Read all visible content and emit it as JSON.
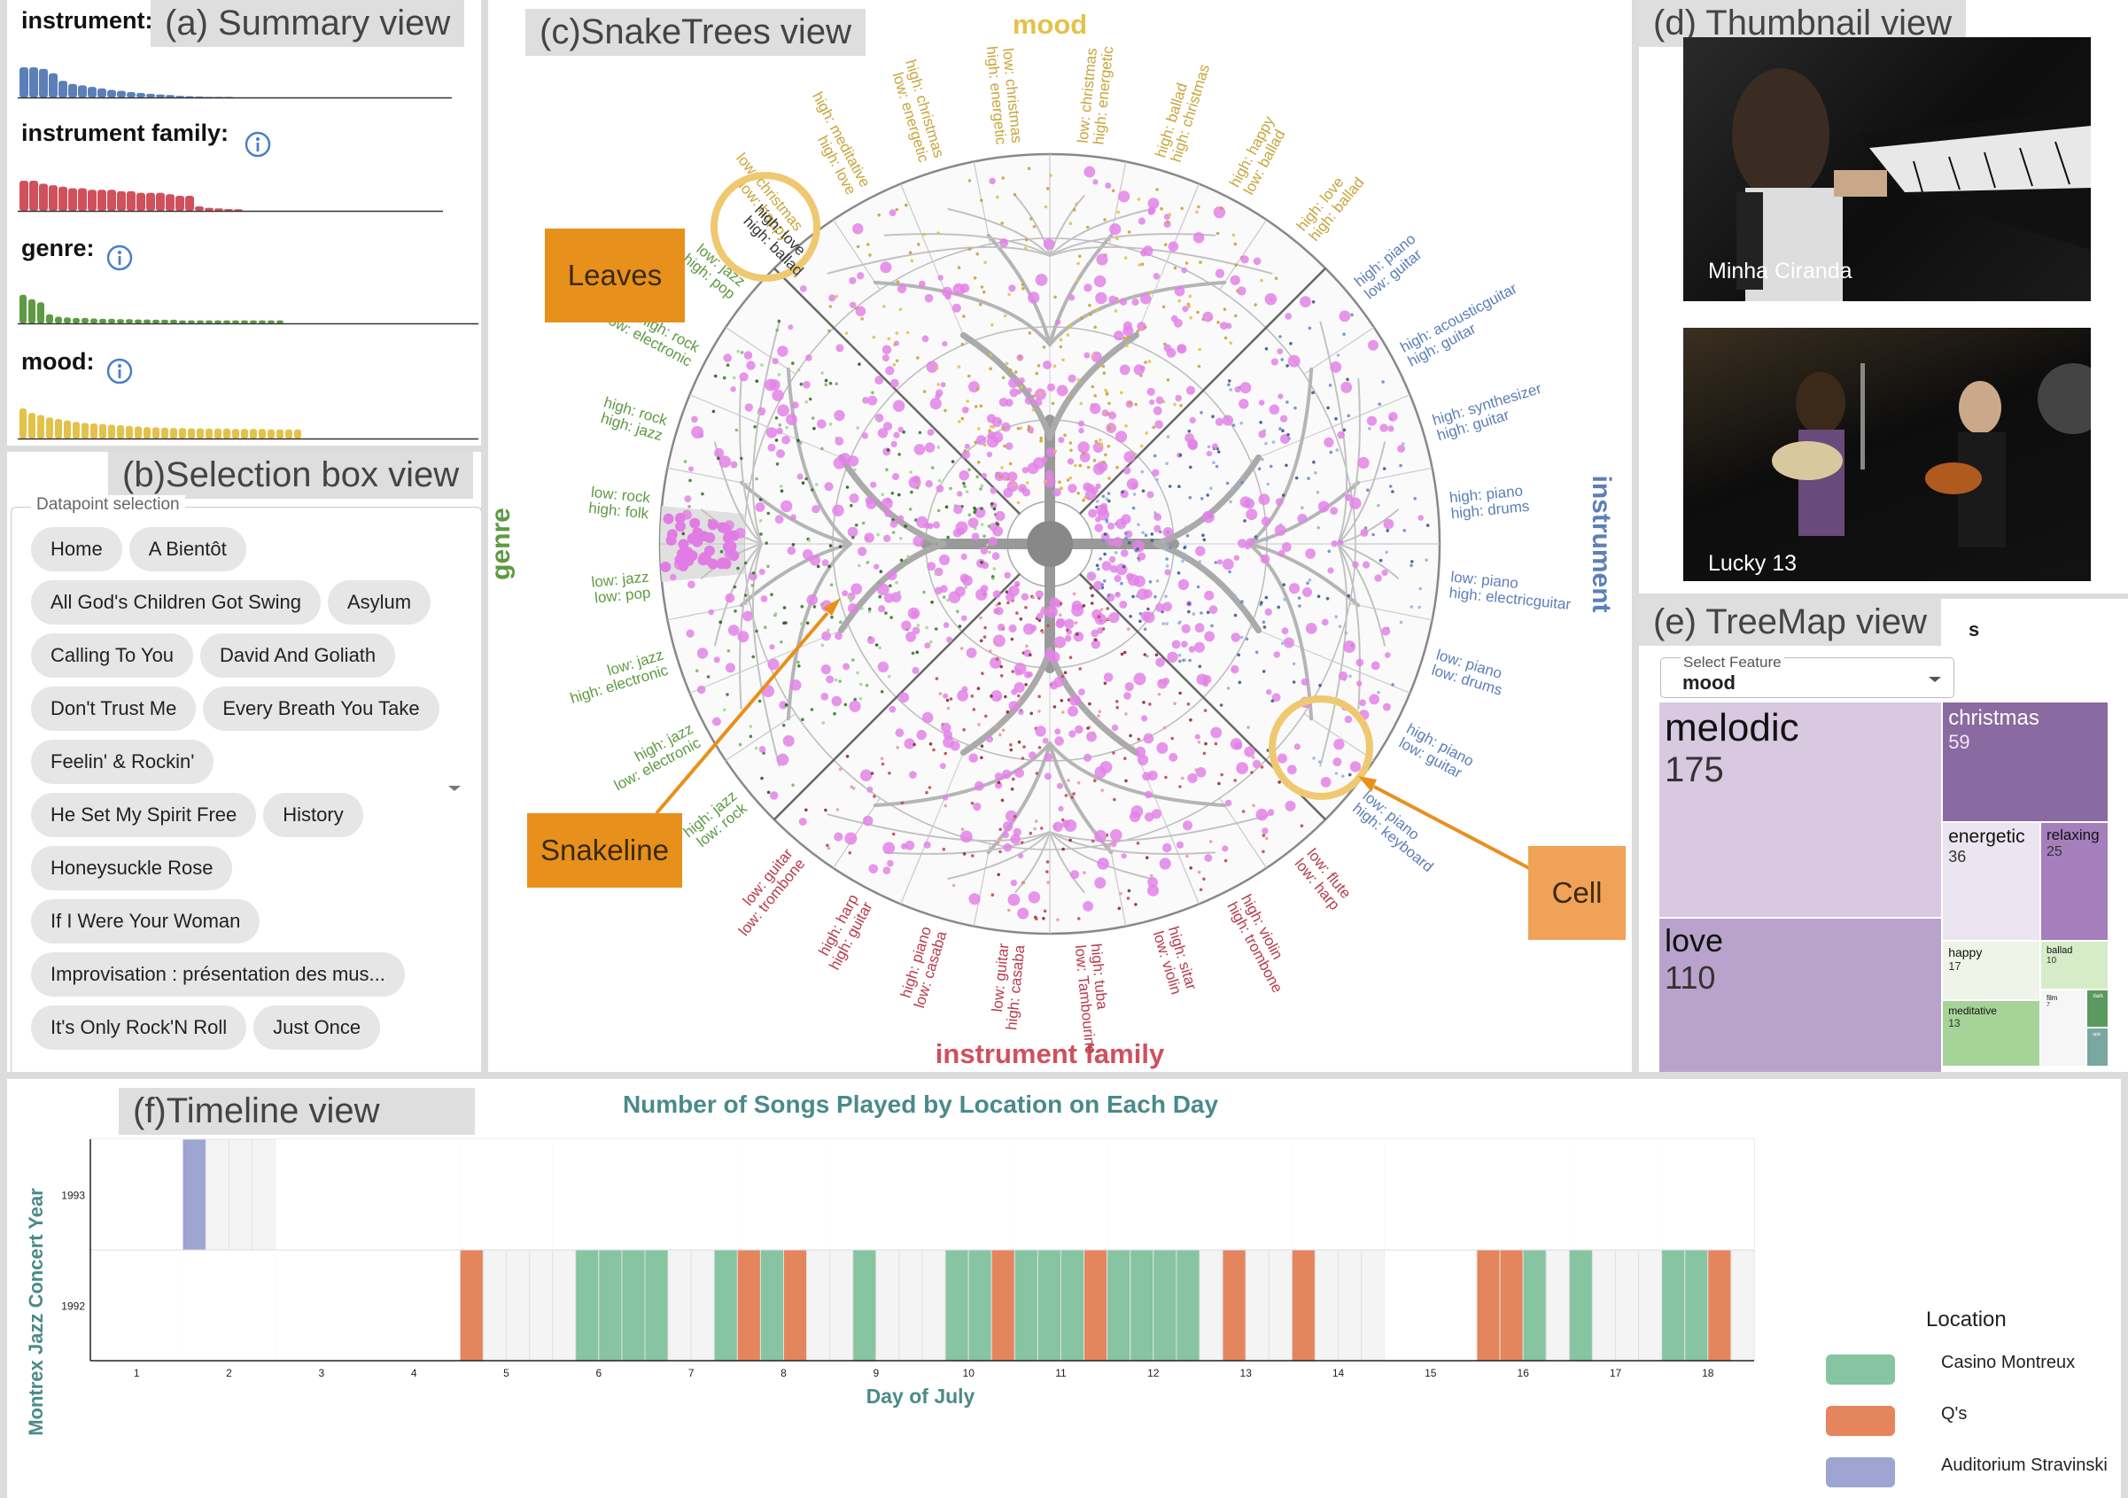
{
  "views": {
    "summary": "(a) Summary view",
    "selection": "(b)Selection box view",
    "snaketrees": "(c)SnakeTrees view",
    "thumbnail": "(d) Thumbnail view",
    "treemap": "(e) TreeMap view",
    "timeline": "(f)Timeline view"
  },
  "summary": {
    "features": [
      {
        "label": "instrument:",
        "color": "#5b7fb8",
        "info": false
      },
      {
        "label": "instrument family:",
        "color": "#d0505c",
        "info": true
      },
      {
        "label": "genre:",
        "color": "#5d9a42",
        "info": true
      },
      {
        "label": "mood:",
        "color": "#e3c24a",
        "info": true
      }
    ]
  },
  "selection": {
    "legend": "Datapoint selection",
    "items": [
      "Home",
      "A Bientôt",
      "All God's Children Got Swing",
      "Asylum",
      "Calling To You",
      "David And Goliath",
      "Don't Trust Me",
      "Every Breath You Take",
      "Feelin' & Rockin'",
      "He Set My Spirit Free",
      "History",
      "Honeysuckle Rose",
      "If I Were Your Woman",
      "Improvisation : présentation des mus...",
      "It's Only Rock'N Roll",
      "Just Once"
    ]
  },
  "snaketrees": {
    "axes": {
      "mood": "mood",
      "genre": "genre",
      "instrument": "instrument",
      "family": "instrument family"
    },
    "axis_colors": {
      "mood": "#e3c24a",
      "genre": "#5d9a42",
      "instrument": "#5b7fb8",
      "family": "#d0505c"
    },
    "annotations": {
      "leaves": "Leaves",
      "snakeline": "Snakeline",
      "cell": "Cell"
    },
    "mood_labels": [
      "low: christmas|low: happy",
      "high: meditative|high: love",
      "high: christmas|low: energetic",
      "low: christmas|high: energetic",
      "low: christmas|high: energetic",
      "high: ballad|high: christmas",
      "high: happy|low: ballad",
      "high: love|high: ballad"
    ],
    "instrument_labels": [
      "high: piano|low: guitar",
      "high: acousticguitar|high: guitar",
      "high: synthesizer|high: guitar",
      "high: piano|high: drums",
      "low: piano|high: electricguitar",
      "low: piano|low: drums",
      "high: piano|low: guitar",
      "low: piano|high: keyboard"
    ],
    "family_labels": [
      "low: flute|low: harp",
      "high: violin|high: trombone",
      "high: sitar|low: violin",
      "high: tuba|low: Tambourine",
      "low: guitar|high: casaba",
      "high: piano|low: casaba",
      "high: harp|high: guitar",
      "low: guitar|low: trombone"
    ],
    "genre_labels": [
      "high: jazz|low: rock",
      "high: jazz|low: electronic",
      "low: jazz|high: electronic",
      "low: jazz|low: pop",
      "low: rock|high: folk",
      "high: rock|high: jazz",
      "high: rock|low: electronic",
      "low: jazz|high: pop"
    ]
  },
  "thumbnails": [
    {
      "caption": "Minha Ciranda"
    },
    {
      "caption": "Lucky 13"
    }
  ],
  "treemap": {
    "select_label": "Select Feature",
    "selected": "mood",
    "stray": "s",
    "cells": [
      {
        "name": "melodic",
        "count": "175",
        "color": "#d8c8e0"
      },
      {
        "name": "love",
        "count": "110",
        "color": "#b9a3cc"
      },
      {
        "name": "christmas",
        "count": "59",
        "color": "#8a6aa0"
      },
      {
        "name": "energetic",
        "count": "36",
        "color": "#ece4f0"
      },
      {
        "name": "relaxing",
        "count": "25",
        "color": "#a57fbc"
      },
      {
        "name": "happy",
        "count": "17",
        "color": "#eef5e8"
      },
      {
        "name": "ballad",
        "count": "10",
        "color": "#d6ecc9"
      },
      {
        "name": "meditative",
        "count": "13",
        "color": "#a6d398"
      },
      {
        "name": "film",
        "count": "7",
        "color": "#f6f6f6"
      },
      {
        "name": "dark",
        "count": "",
        "color": "#5a9a5e"
      },
      {
        "name": "epic",
        "count": "",
        "color": "#7aa8a0"
      }
    ]
  },
  "timeline": {
    "title": "Number of Songs Played by Location on Each Day",
    "ylabel": "Montrex Jazz Concert Year",
    "xlabel": "Day of July",
    "legend_title": "Location",
    "colors": {
      "Casino Montreux": "#86c4a2",
      "Q's": "#e4855e",
      "Auditorium Stravinski": "#9da5d0"
    }
  },
  "chart_data": {
    "type": "heatmap",
    "title": "Number of Songs Played by Location on Each Day",
    "xlabel": "Day of July",
    "ylabel": "Montrex Jazz Concert Year",
    "x_ticks": [
      "1",
      "2",
      "3",
      "4",
      "5",
      "6",
      "7",
      "8",
      "9",
      "10",
      "11",
      "12",
      "13",
      "14",
      "15",
      "16",
      "17",
      "18"
    ],
    "y_ticks": [
      "1993",
      "1992"
    ],
    "legend": [
      "Casino Montreux",
      "Q's",
      "Auditorium Stravinski"
    ],
    "cells": {
      "1993": [
        "",
        "",
        "",
        "",
        "A",
        "",
        "",
        "",
        "",
        "",
        "",
        "",
        "",
        "",
        "",
        "",
        "",
        "",
        "",
        "",
        "",
        "",
        "",
        "",
        "",
        "",
        "",
        "",
        "",
        "",
        "",
        "",
        "",
        "",
        "",
        "",
        "",
        "",
        "",
        "",
        "",
        "",
        "",
        "",
        "",
        "",
        "",
        "",
        "",
        "",
        "",
        "",
        "",
        "",
        "",
        "",
        "",
        "",
        "",
        "",
        "",
        "",
        "",
        "",
        "",
        "",
        "",
        "",
        "",
        "",
        "",
        "",
        "",
        "",
        "",
        ""
      ],
      "1992": [
        "",
        "",
        "",
        "",
        "",
        "",
        "",
        "",
        "",
        "",
        "",
        "",
        "",
        "",
        "",
        "",
        "Q",
        "",
        "",
        "",
        "",
        "C",
        "C",
        "C",
        "C",
        "",
        "",
        "C",
        "Q",
        "C",
        "Q",
        "",
        "",
        "C",
        "",
        "",
        "",
        "C",
        "C",
        "Q",
        "C",
        "C",
        "C",
        "Q",
        "C",
        "C",
        "C",
        "C",
        "",
        "Q",
        "",
        "",
        "Q",
        "",
        "",
        "",
        "",
        "",
        "",
        "",
        "Q",
        "Q",
        "C",
        "",
        "C",
        "",
        "",
        "",
        "C",
        "C",
        "Q",
        "",
        "C",
        "",
        "",
        "",
        "",
        "",
        "",
        "C",
        "C",
        "C",
        "C",
        "Q",
        "C",
        "C",
        "C",
        "C"
      ]
    }
  }
}
